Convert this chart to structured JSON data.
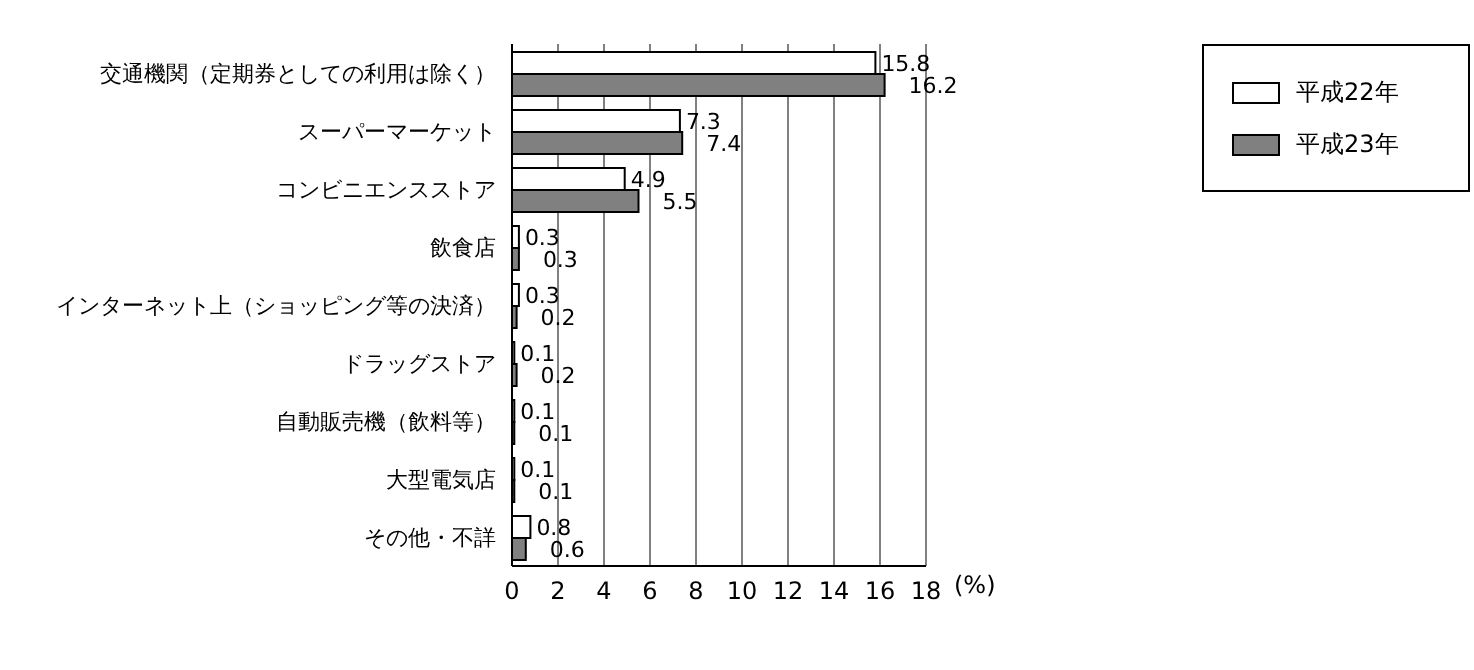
{
  "chart_data": {
    "type": "bar",
    "orientation": "horizontal",
    "categories": [
      "交通機関（定期券としての利用は除く）",
      "スーパーマーケット",
      "コンビニエンスストア",
      "飲食店",
      "インターネット上（ショッピング等の決済）",
      "ドラッグストア",
      "自動販売機（飲料等）",
      "大型電気店",
      "その他・不詳"
    ],
    "series": [
      {
        "name": "平成22年",
        "color": "#ffffff",
        "values": [
          15.8,
          7.3,
          4.9,
          0.3,
          0.3,
          0.1,
          0.1,
          0.1,
          0.8
        ]
      },
      {
        "name": "平成23年",
        "color": "#808080",
        "values": [
          16.2,
          7.4,
          5.5,
          0.3,
          0.2,
          0.2,
          0.1,
          0.1,
          0.6
        ]
      }
    ],
    "xlabel": "(%)",
    "xlim": [
      0,
      18
    ],
    "xticks": [
      0,
      2,
      4,
      6,
      8,
      10,
      12,
      14,
      16,
      18
    ],
    "grid": "x",
    "legend": "top right",
    "data_labels": true
  }
}
